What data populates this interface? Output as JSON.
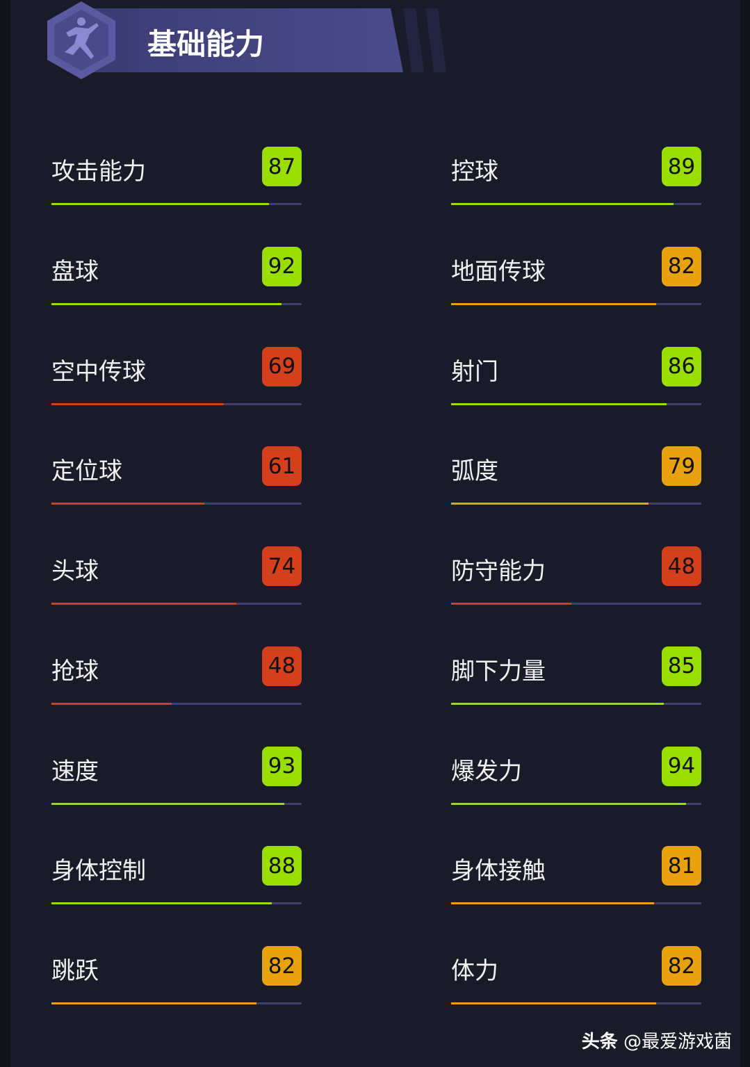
{
  "header": {
    "title": "基础能力",
    "icon": "running-man-icon"
  },
  "colors": {
    "high": "#9ade00",
    "mid": "#e9a20f",
    "low": "#d5401c"
  },
  "stats": [
    {
      "label": "攻击能力",
      "value": 87,
      "tier": "high"
    },
    {
      "label": "控球",
      "value": 89,
      "tier": "high"
    },
    {
      "label": "盘球",
      "value": 92,
      "tier": "high"
    },
    {
      "label": "地面传球",
      "value": 82,
      "tier": "mid"
    },
    {
      "label": "空中传球",
      "value": 69,
      "tier": "low"
    },
    {
      "label": "射门",
      "value": 86,
      "tier": "high"
    },
    {
      "label": "定位球",
      "value": 61,
      "tier": "low"
    },
    {
      "label": "弧度",
      "value": 79,
      "tier": "mid"
    },
    {
      "label": "头球",
      "value": 74,
      "tier": "low"
    },
    {
      "label": "防守能力",
      "value": 48,
      "tier": "low"
    },
    {
      "label": "抢球",
      "value": 48,
      "tier": "low"
    },
    {
      "label": "脚下力量",
      "value": 85,
      "tier": "high"
    },
    {
      "label": "速度",
      "value": 93,
      "tier": "high"
    },
    {
      "label": "爆发力",
      "value": 94,
      "tier": "high"
    },
    {
      "label": "身体控制",
      "value": 88,
      "tier": "high"
    },
    {
      "label": "身体接触",
      "value": 81,
      "tier": "mid"
    },
    {
      "label": "跳跃",
      "value": 82,
      "tier": "mid"
    },
    {
      "label": "体力",
      "value": 82,
      "tier": "mid"
    }
  ],
  "watermark": {
    "source": "头条",
    "handle": "@最爱游戏菌"
  }
}
